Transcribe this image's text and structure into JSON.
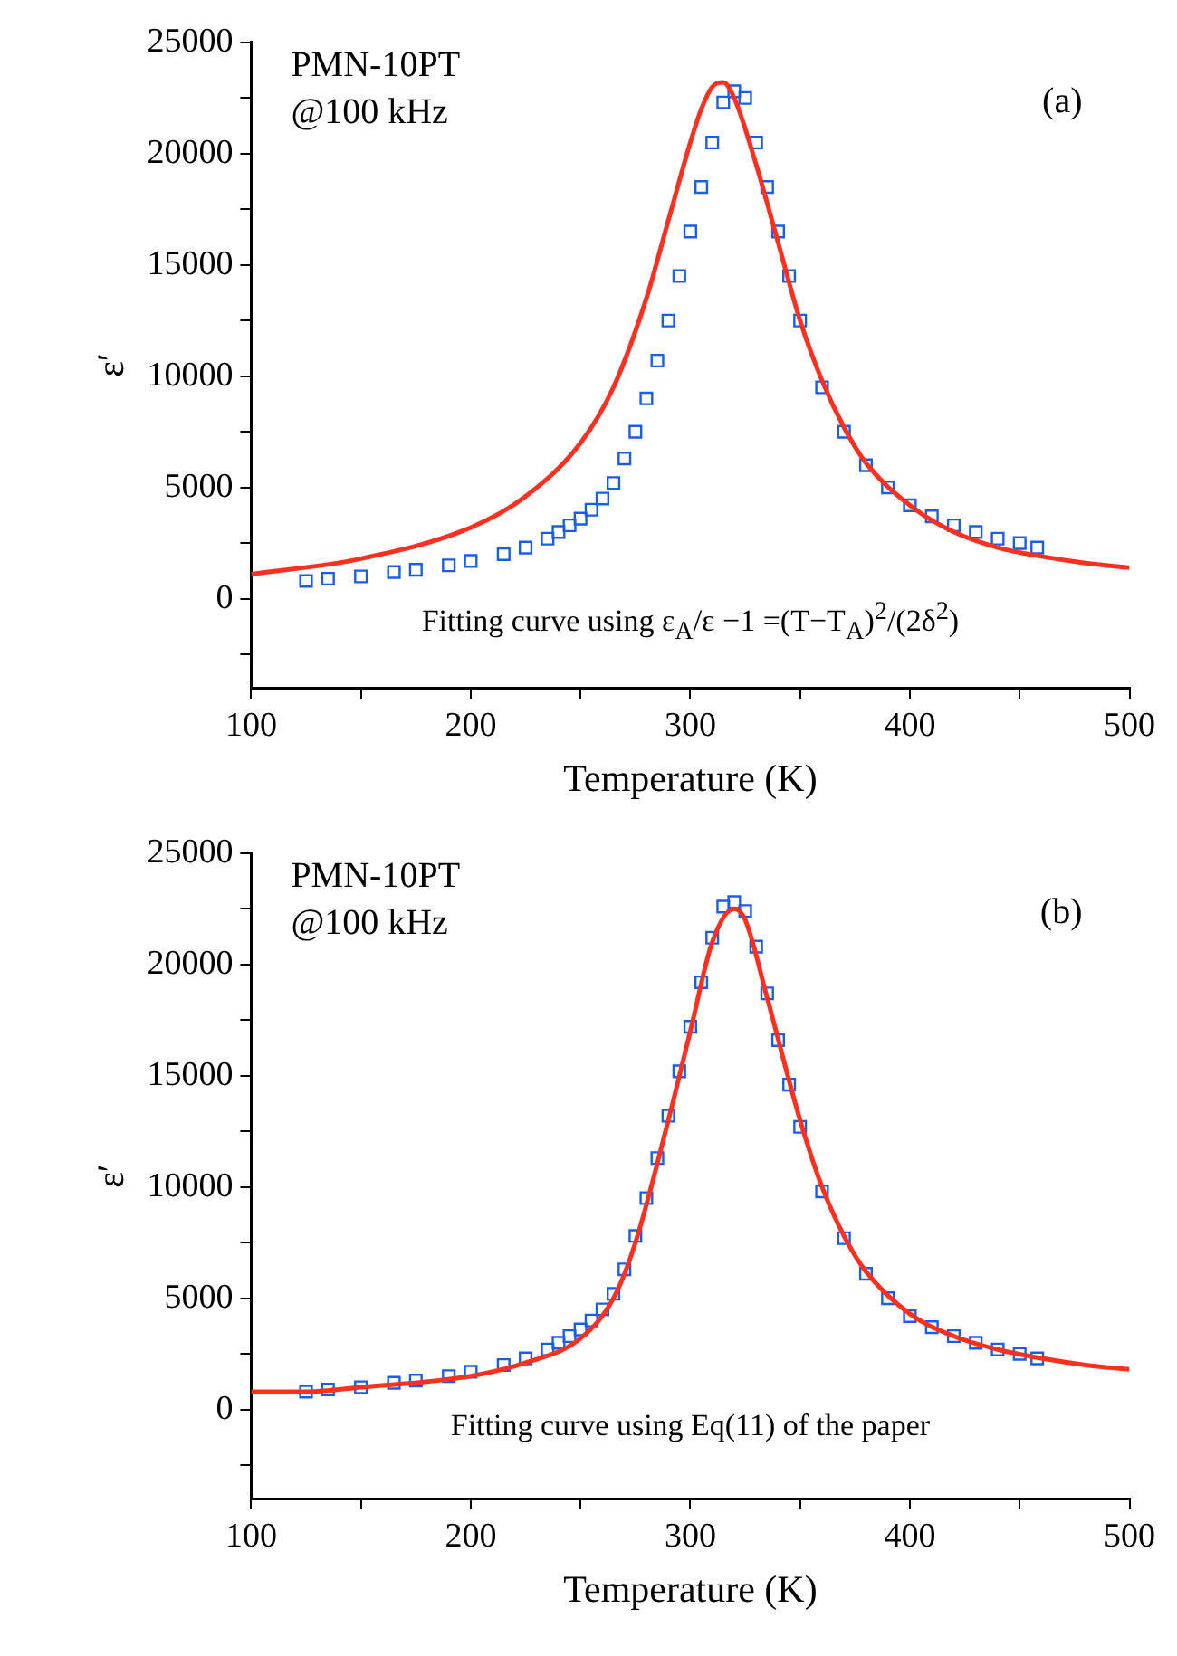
{
  "chart_data": [
    {
      "type": "scatter",
      "xlabel": "Temperature (K)",
      "ylabel": "ε′",
      "xlim": [
        100,
        500
      ],
      "ylim": [
        -4000,
        25000
      ],
      "xticks": [
        100,
        {
          "value": 150,
          "label": null
        },
        200,
        {
          "value": 250,
          "label": null
        },
        300,
        {
          "value": 350,
          "label": null
        },
        400,
        {
          "value": 450,
          "label": null
        },
        500
      ],
      "yticks": [
        {
          "value": -2500,
          "label": null
        },
        0,
        {
          "value": 2500,
          "label": null
        },
        5000,
        {
          "value": 7500,
          "label": null
        },
        10000,
        {
          "value": 12500,
          "label": null
        },
        15000,
        {
          "value": 17500,
          "label": null
        },
        20000,
        {
          "value": 22500,
          "label": null
        },
        25000
      ],
      "grid": false,
      "legend": false,
      "annotations": [
        "PMN-10PT",
        "@100 kHz",
        "(a)",
        "Fitting curve using ε$_{A}$/ε −1 =(T−T$_{A}$)$^{2}$/(2δ$^{2}$)"
      ],
      "series": [
        {
          "marker": "square",
          "color": "#1a5ee8",
          "x": [
            125,
            135,
            150,
            165,
            175,
            190,
            200,
            215,
            225,
            235,
            240,
            245,
            250,
            255,
            260,
            265,
            270,
            275,
            280,
            285,
            290,
            295,
            300,
            305,
            310,
            315,
            320,
            325,
            330,
            335,
            340,
            345,
            350,
            360,
            370,
            380,
            390,
            400,
            410,
            420,
            430,
            440,
            450,
            458
          ],
          "values": [
            800,
            900,
            1000,
            1200,
            1300,
            1500,
            1700,
            2000,
            2300,
            2700,
            3000,
            3300,
            3600,
            4000,
            4500,
            5200,
            6300,
            7500,
            9000,
            10700,
            12500,
            14500,
            16500,
            18500,
            20500,
            22300,
            22800,
            22500,
            20500,
            18500,
            16500,
            14500,
            12500,
            9500,
            7500,
            6000,
            5000,
            4200,
            3700,
            3300,
            3000,
            2700,
            2500,
            2300
          ]
        },
        {
          "type": "line",
          "marker": "none",
          "color": "#ff3020",
          "x": [
            100,
            150,
            200,
            225,
            250,
            265,
            280,
            290,
            300,
            305,
            310,
            315,
            320,
            330,
            340,
            350,
            360,
            370,
            380,
            400,
            420,
            440,
            460,
            480,
            500
          ],
          "values": [
            1100,
            1800,
            3200,
            4600,
            7000,
            9500,
            13500,
            17000,
            20500,
            22000,
            23000,
            23200,
            22500,
            19500,
            16000,
            12500,
            9800,
            7700,
            6100,
            4200,
            3000,
            2300,
            1900,
            1600,
            1400
          ]
        }
      ]
    },
    {
      "type": "scatter",
      "xlabel": "Temperature (K)",
      "ylabel": "ε′",
      "xlim": [
        100,
        500
      ],
      "ylim": [
        -4000,
        25000
      ],
      "xticks": [
        100,
        {
          "value": 150,
          "label": null
        },
        200,
        {
          "value": 250,
          "label": null
        },
        300,
        {
          "value": 350,
          "label": null
        },
        400,
        {
          "value": 450,
          "label": null
        },
        500
      ],
      "yticks": [
        {
          "value": -2500,
          "label": null
        },
        0,
        {
          "value": 2500,
          "label": null
        },
        5000,
        {
          "value": 7500,
          "label": null
        },
        10000,
        {
          "value": 12500,
          "label": null
        },
        15000,
        {
          "value": 17500,
          "label": null
        },
        20000,
        {
          "value": 22500,
          "label": null
        },
        25000
      ],
      "grid": false,
      "legend": false,
      "annotations": [
        "PMN-10PT",
        "@100 kHz",
        "(b)",
        "Fitting curve using Eq(11) of the paper"
      ],
      "series": [
        {
          "marker": "square",
          "color": "#1a5ee8",
          "x": [
            125,
            135,
            150,
            165,
            175,
            190,
            200,
            215,
            225,
            235,
            240,
            245,
            250,
            255,
            260,
            265,
            270,
            275,
            280,
            285,
            290,
            295,
            300,
            305,
            310,
            315,
            320,
            325,
            330,
            335,
            340,
            345,
            350,
            360,
            370,
            380,
            390,
            400,
            410,
            420,
            430,
            440,
            450,
            458
          ],
          "values": [
            800,
            900,
            1000,
            1200,
            1300,
            1500,
            1700,
            2000,
            2300,
            2700,
            3000,
            3300,
            3600,
            4000,
            4500,
            5200,
            6300,
            7800,
            9500,
            11300,
            13200,
            15200,
            17200,
            19200,
            21200,
            22600,
            22800,
            22400,
            20800,
            18700,
            16600,
            14600,
            12700,
            9800,
            7700,
            6100,
            5000,
            4200,
            3700,
            3300,
            3000,
            2700,
            2500,
            2300
          ]
        },
        {
          "type": "line",
          "marker": "none",
          "color": "#ff3020",
          "x": [
            100,
            125,
            150,
            200,
            225,
            250,
            265,
            275,
            290,
            300,
            310,
            320,
            325,
            335,
            350,
            360,
            370,
            380,
            400,
            420,
            440,
            460,
            480,
            500
          ],
          "values": [
            800,
            800,
            1000,
            1500,
            2100,
            3200,
            5000,
            7500,
            13000,
            17000,
            21000,
            22500,
            22000,
            18500,
            13000,
            10000,
            7800,
            6200,
            4300,
            3300,
            2700,
            2300,
            2000,
            1800
          ]
        }
      ]
    }
  ]
}
